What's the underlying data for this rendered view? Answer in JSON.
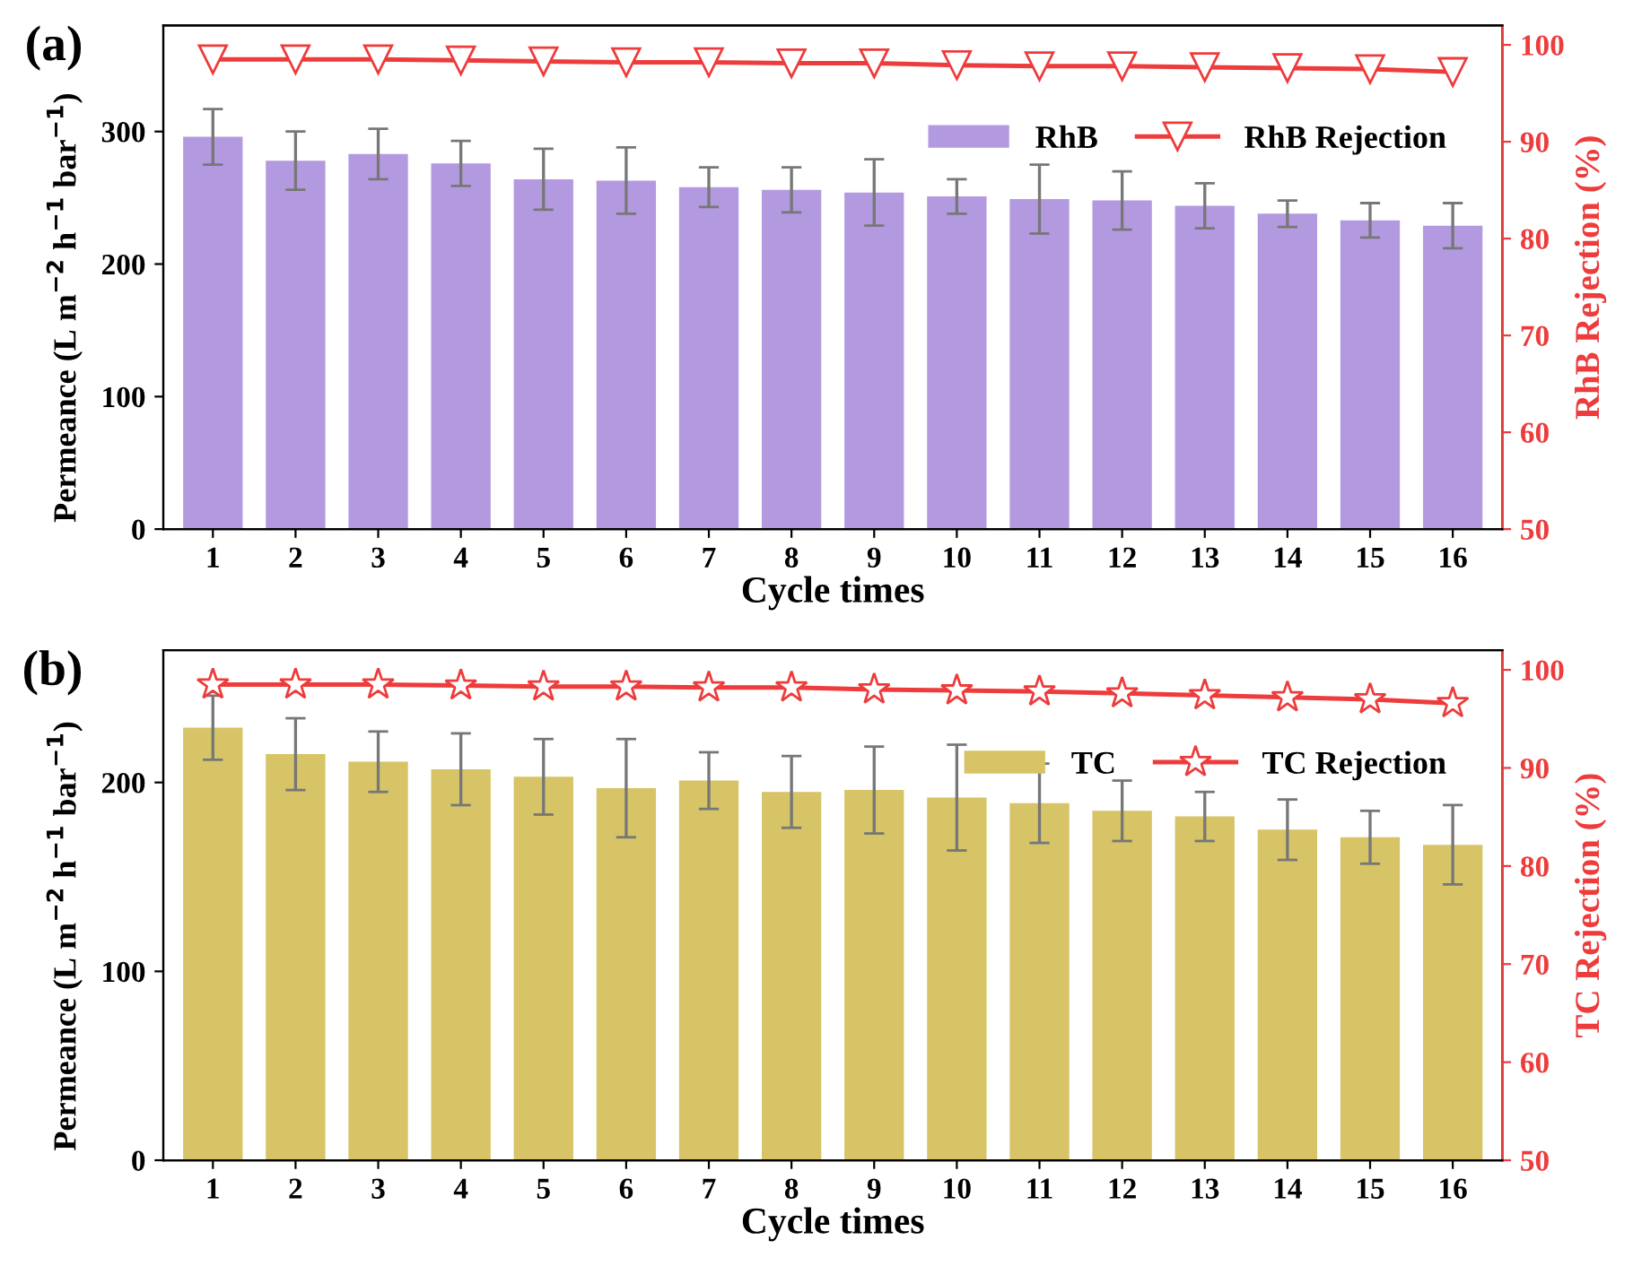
{
  "chart_data": [
    {
      "type": "bar",
      "title": "(a)",
      "xlabel": "Cycle times",
      "ylabel": "Permeance (L m$^{−2}$ h$^{−1}$ bar$^{−1}$)",
      "y2label": "RhB Rejection (%)",
      "categories": [
        "1",
        "2",
        "3",
        "4",
        "5",
        "6",
        "7",
        "8",
        "9",
        "10",
        "11",
        "12",
        "13",
        "14",
        "15",
        "16"
      ],
      "ylim": [
        0,
        380
      ],
      "yticks": [
        0,
        100,
        200,
        300
      ],
      "y2lim": [
        50,
        102
      ],
      "y2ticks": [
        50,
        60,
        70,
        80,
        90,
        100
      ],
      "legend": "top right",
      "series": [
        {
          "name": "RhB",
          "color": "#b39ae0",
          "values": [
            296,
            278,
            283,
            276,
            264,
            263,
            258,
            256,
            254,
            251,
            249,
            248,
            244,
            238,
            233,
            229
          ],
          "errors": [
            21,
            22,
            19,
            17,
            23,
            25,
            15,
            17,
            25,
            13,
            26,
            22,
            17,
            10,
            13,
            17
          ]
        },
        {
          "name": "RhB Rejection",
          "type": "line",
          "axis": "y2",
          "color": "#ee3b3b",
          "marker": "triangle",
          "values": [
            98.5,
            98.5,
            98.5,
            98.4,
            98.3,
            98.2,
            98.2,
            98.1,
            98.1,
            97.9,
            97.8,
            97.8,
            97.7,
            97.6,
            97.5,
            97.2
          ]
        }
      ]
    },
    {
      "type": "bar",
      "title": "(b)",
      "xlabel": "Cycle times",
      "ylabel": "Permeance (L m$^{−2}$ h$^{−1}$ bar$^{−1}$)",
      "y2label": "TC Rejection (%)",
      "categories": [
        "1",
        "2",
        "3",
        "4",
        "5",
        "6",
        "7",
        "8",
        "9",
        "10",
        "11",
        "12",
        "13",
        "14",
        "15",
        "16"
      ],
      "ylim": [
        0,
        270
      ],
      "yticks": [
        0,
        100,
        200
      ],
      "y2lim": [
        50,
        102
      ],
      "y2ticks": [
        50,
        60,
        70,
        80,
        90,
        100
      ],
      "legend": "top right",
      "series": [
        {
          "name": "TC",
          "color": "#d6c466",
          "values": [
            229,
            215,
            211,
            207,
            203,
            197,
            201,
            195,
            196,
            192,
            189,
            185,
            182,
            175,
            171,
            167
          ],
          "errors": [
            17,
            19,
            16,
            19,
            20,
            26,
            15,
            19,
            23,
            28,
            21,
            16,
            13,
            16,
            14,
            21
          ]
        },
        {
          "name": "TC Rejection",
          "type": "line",
          "axis": "y2",
          "color": "#ee3b3b",
          "marker": "star",
          "values": [
            98.5,
            98.5,
            98.5,
            98.4,
            98.3,
            98.3,
            98.2,
            98.2,
            98.0,
            97.9,
            97.8,
            97.6,
            97.4,
            97.2,
            97.0,
            96.6
          ]
        }
      ]
    }
  ]
}
